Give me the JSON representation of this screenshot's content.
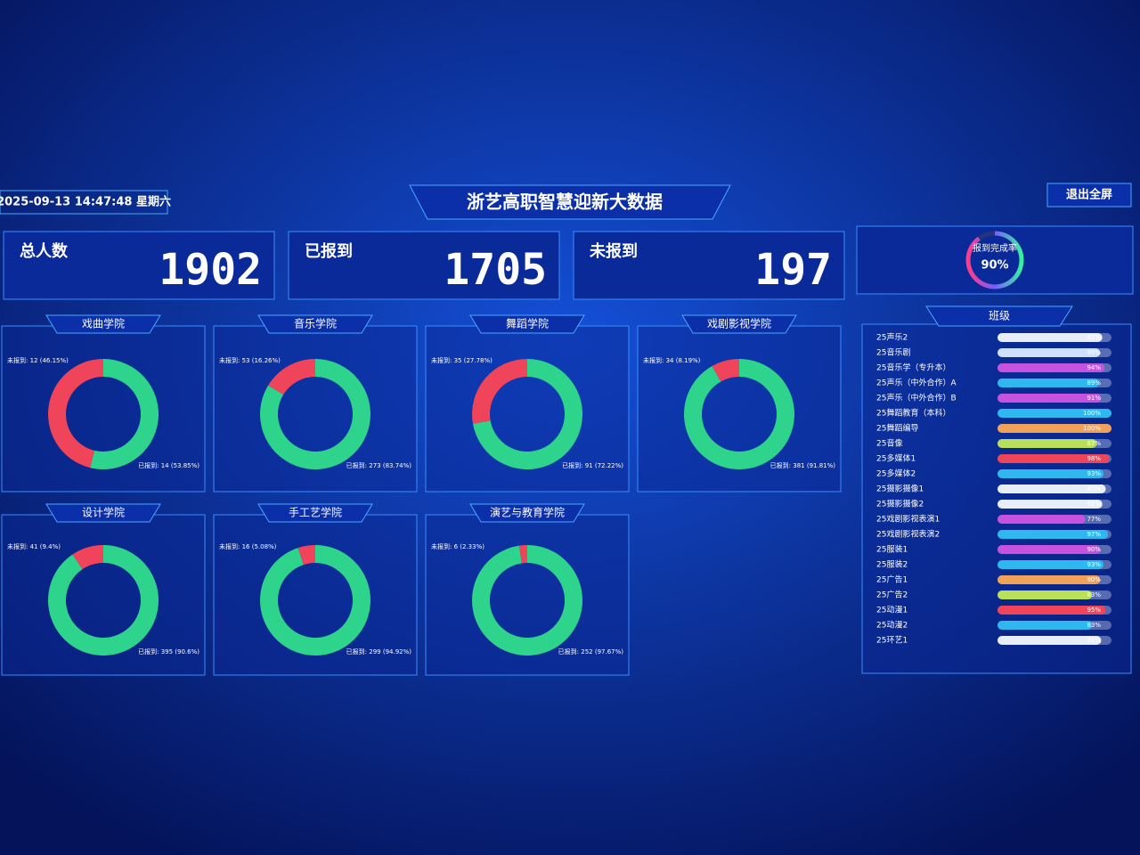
{
  "header": {
    "datetime": "2025-09-13 14:47:48 星期六",
    "title": "浙艺高职智慧迎新大数据",
    "exit_button": "退出全屏"
  },
  "stats": [
    {
      "label": "总人数",
      "value": 1902,
      "color": "#2ec8ff"
    },
    {
      "label": "已报到",
      "value": 1705,
      "color": "#35e0a0"
    },
    {
      "label": "未报到",
      "value": 197,
      "color": "#ff3b5c"
    }
  ],
  "completion": {
    "label": "报到完成率",
    "value": {
      "value": 90,
      "label": "90%"
    }
  },
  "chart_data": [
    {
      "type": "donut",
      "title": "戏曲学院",
      "values": [
        12,
        14
      ],
      "value_labels": [
        "未报到: 12 (46.15%)",
        "已报到: 14 (53.85%)"
      ],
      "colors": [
        "#f0445a",
        "#2ed38c"
      ]
    },
    {
      "type": "donut",
      "title": "音乐学院",
      "values": [
        53,
        273
      ],
      "value_labels": [
        "未报到: 53 (16.26%)",
        "已报到: 273 (83.74%)"
      ],
      "colors": [
        "#f0445a",
        "#2ed38c"
      ]
    },
    {
      "type": "donut",
      "title": "舞蹈学院",
      "values": [
        35,
        91
      ],
      "value_labels": [
        "未报到: 35 (27.78%)",
        "已报到: 91 (72.22%)"
      ],
      "colors": [
        "#f0445a",
        "#2ed38c"
      ]
    },
    {
      "type": "donut",
      "title": "戏剧影视学院",
      "values": [
        34,
        381
      ],
      "value_labels": [
        "未报到: 34 (8.19%)",
        "已报到: 381 (91.81%)"
      ],
      "colors": [
        "#f0445a",
        "#2ed38c"
      ]
    },
    {
      "type": "donut",
      "title": "设计学院",
      "values": [
        41,
        395
      ],
      "value_labels": [
        "未报到: 41 (9.4%)",
        "已报到: 395 (90.6%)"
      ],
      "colors": [
        "#f0445a",
        "#2ed38c"
      ]
    },
    {
      "type": "donut",
      "title": "手工艺学院",
      "values": [
        16,
        299
      ],
      "value_labels": [
        "未报到: 16 (5.08%)",
        "已报到: 299 (94.92%)"
      ],
      "colors": [
        "#f0445a",
        "#2ed38c"
      ]
    },
    {
      "type": "donut",
      "title": "演艺与教育学院",
      "values": [
        6,
        252
      ],
      "value_labels": [
        "未报到: 6 (2.33%)",
        "已报到: 252 (97.67%)"
      ],
      "colors": [
        "#f0445a",
        "#2ed38c"
      ]
    }
  ],
  "classes": {
    "title": "班级",
    "rows": [
      {
        "name": "25声乐2",
        "value": 92,
        "label": "92%",
        "color": "#e8eef8"
      },
      {
        "name": "25音乐剧",
        "value": 90,
        "label": "90%",
        "color": "#cfe0ff"
      },
      {
        "name": "25音乐学（专升本）",
        "value": 94,
        "label": "94%",
        "color": "#c653e0"
      },
      {
        "name": "25声乐（中外合作）A",
        "value": 89,
        "label": "89%",
        "color": "#2fb8f0"
      },
      {
        "name": "25声乐（中外合作）B",
        "value": 91,
        "label": "91%",
        "color": "#c653e0"
      },
      {
        "name": "25舞蹈教育（本科）",
        "value": 100,
        "label": "100%",
        "color": "#2fb8f0"
      },
      {
        "name": "25舞蹈编导",
        "value": 100,
        "label": "100%",
        "color": "#f0a25a"
      },
      {
        "name": "25音像",
        "value": 87,
        "label": "87%",
        "color": "#b8e05a"
      },
      {
        "name": "25多媒体1",
        "value": 98,
        "label": "98%",
        "color": "#f0445a"
      },
      {
        "name": "25多媒体2",
        "value": 93,
        "label": "93%",
        "color": "#2fb8f0"
      },
      {
        "name": "25摄影摄像1",
        "value": 95,
        "label": "95%",
        "color": "#e8eef8"
      },
      {
        "name": "25摄影摄像2",
        "value": 92,
        "label": "92%",
        "color": "#e8eef8"
      },
      {
        "name": "25戏剧影视表演1",
        "value": 77,
        "label": "77%",
        "color": "#c653e0"
      },
      {
        "name": "25戏剧影视表演2",
        "value": 97,
        "label": "97%",
        "color": "#2fb8f0"
      },
      {
        "name": "25服装1",
        "value": 90,
        "label": "90%",
        "color": "#c653e0"
      },
      {
        "name": "25服装2",
        "value": 93,
        "label": "93%",
        "color": "#2fb8f0"
      },
      {
        "name": "25广告1",
        "value": 90,
        "label": "90%",
        "color": "#f0a25a"
      },
      {
        "name": "25广告2",
        "value": 83,
        "label": "83%",
        "color": "#b8e05a"
      },
      {
        "name": "25动漫1",
        "value": 95,
        "label": "95%",
        "color": "#f0445a"
      },
      {
        "name": "25动漫2",
        "value": 83,
        "label": "83%",
        "color": "#2fb8f0"
      },
      {
        "name": "25环艺1",
        "value": 91,
        "label": "91%",
        "color": "#e8eef8"
      }
    ]
  }
}
